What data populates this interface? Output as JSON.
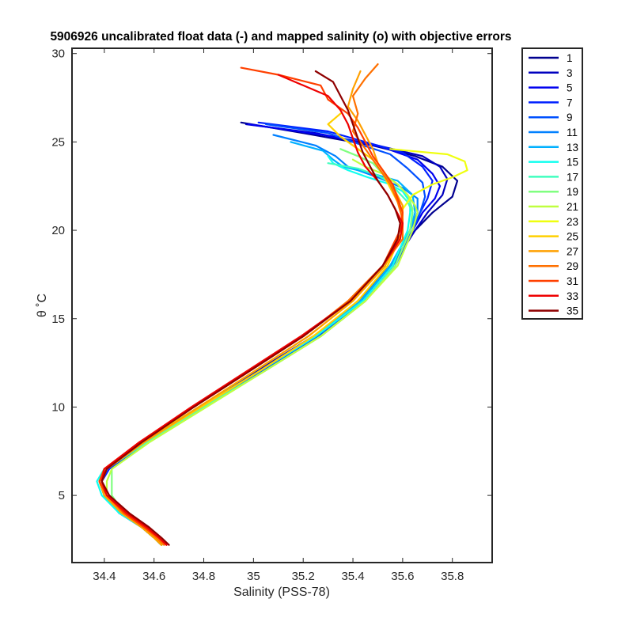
{
  "chart_data": {
    "type": "line",
    "title": "5906926 uncalibrated float data (-) and mapped salinity (o) with objective errors",
    "xlabel": "Salinity (PSS-78)",
    "ylabel": "θ ˚C",
    "xlim": [
      34.27,
      35.96
    ],
    "ylim": [
      1.2,
      30.3
    ],
    "x_ticks": [
      34.4,
      34.6,
      34.8,
      35,
      35.2,
      35.4,
      35.6,
      35.8
    ],
    "x_tick_labels": [
      "34.4",
      "34.6",
      "34.8",
      "35",
      "35.2",
      "35.4",
      "35.6",
      "35.8"
    ],
    "y_ticks": [
      5,
      10,
      15,
      20,
      25,
      30
    ],
    "y_tick_labels": [
      "5",
      "10",
      "15",
      "20",
      "25",
      "30"
    ],
    "grid": false,
    "legend_position": "outside-right",
    "legend_entries": [
      "1",
      "3",
      "5",
      "7",
      "9",
      "11",
      "13",
      "15",
      "17",
      "19",
      "21",
      "23",
      "25",
      "27",
      "29",
      "31",
      "33",
      "35"
    ],
    "series": [
      {
        "name": "1",
        "color": "#00008f",
        "theta": [
          26.1,
          25.5,
          24.8,
          24.2,
          23.6,
          22.8,
          21.9,
          21.0,
          20.0,
          18.0,
          16.0,
          14.0,
          12.0,
          10.0,
          8.0,
          6.5,
          5.8,
          5.0,
          4.0,
          3.2,
          2.6,
          2.2
        ],
        "salinity": [
          34.95,
          35.2,
          35.48,
          35.65,
          35.76,
          35.82,
          35.8,
          35.72,
          35.65,
          35.55,
          35.42,
          35.25,
          35.02,
          34.79,
          34.56,
          34.41,
          34.39,
          34.41,
          34.47,
          34.55,
          34.6,
          34.63
        ]
      },
      {
        "name": "3",
        "color": "#0000bf",
        "theta": [
          26.0,
          25.5,
          24.8,
          24.2,
          23.6,
          22.9,
          22.0,
          21.0,
          20.0,
          18.0,
          16.0,
          14.0,
          12.0,
          10.0,
          8.0,
          6.5,
          5.8,
          5.0,
          4.0,
          3.2,
          2.6,
          2.2
        ],
        "salinity": [
          34.97,
          35.25,
          35.5,
          35.68,
          35.75,
          35.78,
          35.76,
          35.7,
          35.65,
          35.56,
          35.43,
          35.24,
          35.01,
          34.78,
          34.55,
          34.41,
          34.38,
          34.4,
          34.46,
          34.55,
          34.6,
          34.63
        ]
      },
      {
        "name": "5",
        "color": "#0000ef",
        "theta": [
          26.0,
          25.4,
          24.7,
          24.0,
          23.2,
          22.5,
          21.8,
          21.0,
          20.0,
          18.0,
          16.0,
          14.0,
          12.0,
          10.0,
          8.0,
          6.5,
          5.8,
          5.0,
          4.0,
          3.2,
          2.6,
          2.2
        ],
        "salinity": [
          34.98,
          35.28,
          35.52,
          35.66,
          35.72,
          35.75,
          35.73,
          35.68,
          35.64,
          35.56,
          35.44,
          35.26,
          35.03,
          34.8,
          34.56,
          34.41,
          34.38,
          34.4,
          34.47,
          34.55,
          34.61,
          34.63
        ]
      },
      {
        "name": "7",
        "color": "#0020ff",
        "theta": [
          26.1,
          25.6,
          25.0,
          24.4,
          23.6,
          22.8,
          21.8,
          21.0,
          20.0,
          18.0,
          16.0,
          14.0,
          12.0,
          10.0,
          8.0,
          6.5,
          5.8,
          5.0,
          4.0,
          3.2,
          2.6,
          2.2
        ],
        "salinity": [
          35.02,
          35.3,
          35.45,
          35.6,
          35.68,
          35.72,
          35.7,
          35.67,
          35.64,
          35.57,
          35.45,
          35.27,
          35.04,
          34.8,
          34.57,
          34.42,
          34.39,
          34.41,
          34.47,
          34.55,
          34.6,
          34.63
        ]
      },
      {
        "name": "9",
        "color": "#0050ff",
        "theta": [
          26.0,
          25.5,
          24.9,
          24.3,
          23.5,
          22.7,
          21.9,
          21.0,
          20.0,
          18.0,
          16.0,
          14.0,
          12.0,
          10.0,
          8.0,
          6.5,
          5.8,
          5.0,
          4.0,
          3.2,
          2.6,
          2.2
        ],
        "salinity": [
          35.05,
          35.3,
          35.42,
          35.55,
          35.62,
          35.68,
          35.69,
          35.67,
          35.64,
          35.56,
          35.44,
          35.26,
          35.03,
          34.8,
          34.56,
          34.41,
          34.38,
          34.4,
          34.46,
          34.55,
          34.6,
          34.63
        ]
      },
      {
        "name": "11",
        "color": "#0080ff",
        "theta": [
          25.4,
          24.8,
          24.2,
          23.6,
          23.0,
          22.4,
          21.8,
          21.0,
          20.0,
          18.0,
          16.0,
          14.0,
          12.0,
          10.0,
          8.0,
          6.5,
          5.8,
          5.0,
          4.0,
          3.2,
          2.6,
          2.2
        ],
        "salinity": [
          35.08,
          35.25,
          35.33,
          35.38,
          35.5,
          35.6,
          35.66,
          35.66,
          35.63,
          35.55,
          35.43,
          35.25,
          35.02,
          34.79,
          34.56,
          34.41,
          34.38,
          34.4,
          34.47,
          34.55,
          34.6,
          34.63
        ]
      },
      {
        "name": "13",
        "color": "#00b0ff",
        "theta": [
          25.0,
          24.5,
          24.0,
          23.6,
          23.2,
          22.8,
          22.0,
          21.0,
          20.0,
          18.0,
          16.0,
          14.0,
          12.0,
          10.0,
          8.0,
          6.5,
          5.8,
          5.0,
          4.0,
          3.2,
          2.6,
          2.2
        ],
        "salinity": [
          35.15,
          35.28,
          35.32,
          35.36,
          35.48,
          35.58,
          35.64,
          35.65,
          35.63,
          35.55,
          35.43,
          35.25,
          35.02,
          34.79,
          34.56,
          34.41,
          34.38,
          34.4,
          34.47,
          34.55,
          34.6,
          34.63
        ]
      },
      {
        "name": "15",
        "color": "#10ffef",
        "theta": [
          24.2,
          23.8,
          23.4,
          23.0,
          22.6,
          22.2,
          21.6,
          21.0,
          20.0,
          18.0,
          16.0,
          14.0,
          12.0,
          10.0,
          8.0,
          6.5,
          5.8,
          5.0,
          4.0,
          3.2,
          2.6,
          2.2
        ],
        "salinity": [
          35.3,
          35.32,
          35.38,
          35.46,
          35.55,
          35.6,
          35.63,
          35.63,
          35.62,
          35.56,
          35.44,
          35.25,
          35.02,
          34.79,
          34.56,
          34.4,
          34.37,
          34.39,
          34.46,
          34.55,
          34.6,
          34.63
        ]
      },
      {
        "name": "17",
        "color": "#40ffbf",
        "theta": [
          23.8,
          23.5,
          23.1,
          22.7,
          22.2,
          21.6,
          21.0,
          20.0,
          18.0,
          16.0,
          14.0,
          12.0,
          10.0,
          8.0,
          6.5,
          5.8,
          5.0,
          4.0,
          3.2,
          2.6,
          2.2
        ],
        "salinity": [
          35.3,
          35.42,
          35.5,
          35.55,
          35.58,
          35.62,
          35.64,
          35.63,
          35.57,
          35.45,
          35.27,
          35.04,
          34.8,
          34.57,
          34.41,
          34.38,
          34.4,
          34.47,
          34.55,
          34.6,
          34.63
        ]
      },
      {
        "name": "19",
        "color": "#80ff80",
        "theta": [
          24.6,
          24.2,
          23.8,
          23.2,
          22.6,
          22.0,
          21.2,
          20.0,
          18.0,
          16.0,
          14.0,
          12.0,
          10.0,
          8.0,
          6.5,
          5.8,
          5.0,
          4.0,
          3.2,
          2.6,
          2.2
        ],
        "salinity": [
          35.35,
          35.42,
          35.48,
          35.52,
          35.58,
          35.62,
          35.64,
          35.63,
          35.57,
          35.45,
          35.27,
          35.04,
          34.81,
          34.58,
          34.43,
          34.43,
          34.43,
          34.48,
          34.56,
          34.61,
          34.63
        ]
      },
      {
        "name": "21",
        "color": "#bfff40",
        "theta": [
          24.0,
          23.6,
          23.2,
          22.6,
          22.0,
          21.4,
          21.0,
          20.0,
          18.0,
          16.0,
          14.0,
          12.0,
          10.0,
          8.0,
          6.5,
          5.8,
          5.0,
          4.0,
          3.2,
          2.6,
          2.2
        ],
        "salinity": [
          35.4,
          35.45,
          35.52,
          35.58,
          35.62,
          35.65,
          35.66,
          35.64,
          35.58,
          35.45,
          35.27,
          35.04,
          34.81,
          34.58,
          34.43,
          34.41,
          34.41,
          34.47,
          34.55,
          34.6,
          34.63
        ]
      },
      {
        "name": "23",
        "color": "#efff10",
        "theta": [
          24.6,
          24.3,
          23.9,
          23.4,
          23.0,
          22.6,
          22.0,
          21.2,
          20.0,
          18.0,
          16.0,
          14.0,
          12.0,
          10.0,
          8.0,
          6.5,
          5.8,
          5.0,
          4.0,
          3.2,
          2.6,
          2.2
        ],
        "salinity": [
          35.55,
          35.78,
          35.85,
          35.86,
          35.8,
          35.72,
          35.64,
          35.6,
          35.6,
          35.53,
          35.4,
          35.22,
          35.0,
          34.78,
          34.55,
          34.41,
          34.39,
          34.41,
          34.48,
          34.56,
          34.61,
          34.63
        ]
      },
      {
        "name": "25",
        "color": "#ffd000",
        "theta": [
          26.6,
          26.0,
          25.3,
          24.6,
          24.0,
          23.2,
          22.4,
          21.6,
          21.0,
          20.0,
          18.0,
          16.0,
          14.0,
          12.0,
          10.0,
          8.0,
          6.5,
          5.8,
          5.0,
          4.0,
          3.2,
          2.6,
          2.2
        ],
        "salinity": [
          35.35,
          35.3,
          35.35,
          35.42,
          35.48,
          35.52,
          35.55,
          35.58,
          35.6,
          35.6,
          35.54,
          35.42,
          35.24,
          35.02,
          34.79,
          34.56,
          34.41,
          34.38,
          34.4,
          34.47,
          34.55,
          34.6,
          34.63
        ]
      },
      {
        "name": "27",
        "color": "#ffa000",
        "theta": [
          29.0,
          28.0,
          27.0,
          26.2,
          25.4,
          24.6,
          23.8,
          23.0,
          22.2,
          21.4,
          20.0,
          18.0,
          16.0,
          14.0,
          12.0,
          10.0,
          8.0,
          6.5,
          5.8,
          5.0,
          4.0,
          3.2,
          2.6,
          2.2
        ],
        "salinity": [
          35.43,
          35.4,
          35.38,
          35.42,
          35.45,
          35.48,
          35.5,
          35.54,
          35.57,
          35.6,
          35.6,
          35.53,
          35.4,
          35.22,
          35.0,
          34.78,
          34.56,
          34.41,
          34.38,
          34.4,
          34.47,
          34.55,
          34.6,
          34.63
        ]
      },
      {
        "name": "29",
        "color": "#ff7000",
        "theta": [
          29.4,
          28.6,
          27.6,
          26.6,
          25.6,
          24.6,
          23.6,
          22.6,
          21.6,
          20.6,
          19.5,
          18.0,
          16.0,
          14.0,
          12.0,
          10.0,
          8.0,
          6.5,
          5.8,
          5.0,
          4.0,
          3.2,
          2.6,
          2.2
        ],
        "salinity": [
          35.5,
          35.45,
          35.4,
          35.42,
          35.4,
          35.45,
          35.5,
          35.55,
          35.58,
          35.6,
          35.6,
          35.52,
          35.38,
          35.2,
          34.98,
          34.76,
          34.55,
          34.41,
          34.38,
          34.41,
          34.48,
          34.56,
          34.61,
          34.64
        ]
      },
      {
        "name": "31",
        "color": "#ff4000",
        "theta": [
          29.2,
          28.8,
          28.2,
          27.4,
          26.6,
          25.8,
          25.0,
          24.2,
          23.4,
          22.6,
          21.8,
          21.0,
          20.0,
          18.0,
          16.0,
          14.0,
          12.0,
          10.0,
          8.0,
          6.5,
          5.8,
          5.0,
          4.0,
          3.2,
          2.6,
          2.2
        ],
        "salinity": [
          34.95,
          35.1,
          35.27,
          35.3,
          35.38,
          35.42,
          35.45,
          35.48,
          35.52,
          35.56,
          35.58,
          35.6,
          35.59,
          35.52,
          35.39,
          35.2,
          34.98,
          34.76,
          34.54,
          34.4,
          34.38,
          34.41,
          34.48,
          34.56,
          34.62,
          34.65
        ]
      },
      {
        "name": "33",
        "color": "#ef0000",
        "theta": [
          28.8,
          28.2,
          27.6,
          26.8,
          26.0,
          25.2,
          24.4,
          23.6,
          22.8,
          22.0,
          21.2,
          20.4,
          19.5,
          18.0,
          16.0,
          14.0,
          12.0,
          10.0,
          8.0,
          6.5,
          5.8,
          5.0,
          4.0,
          3.2,
          2.6,
          2.2
        ],
        "salinity": [
          35.1,
          35.2,
          35.3,
          35.35,
          35.38,
          35.4,
          35.42,
          35.45,
          35.5,
          35.54,
          35.57,
          35.6,
          35.59,
          35.52,
          35.39,
          35.19,
          34.97,
          34.75,
          34.54,
          34.4,
          34.39,
          34.41,
          34.49,
          34.57,
          34.62,
          34.65
        ]
      },
      {
        "name": "35",
        "color": "#8f0000",
        "theta": [
          29.0,
          28.4,
          27.6,
          26.8,
          26.0,
          25.2,
          24.4,
          23.6,
          22.8,
          22.0,
          21.2,
          20.4,
          19.5,
          18.0,
          16.0,
          14.0,
          12.0,
          10.0,
          8.0,
          6.5,
          5.8,
          5.0,
          4.0,
          3.2,
          2.6,
          2.2
        ],
        "salinity": [
          35.25,
          35.32,
          35.35,
          35.38,
          35.4,
          35.42,
          35.44,
          35.47,
          35.5,
          35.54,
          35.57,
          35.59,
          35.58,
          35.52,
          35.39,
          35.2,
          34.98,
          34.76,
          34.55,
          34.41,
          34.39,
          34.42,
          34.5,
          34.58,
          34.63,
          34.66
        ]
      }
    ]
  }
}
